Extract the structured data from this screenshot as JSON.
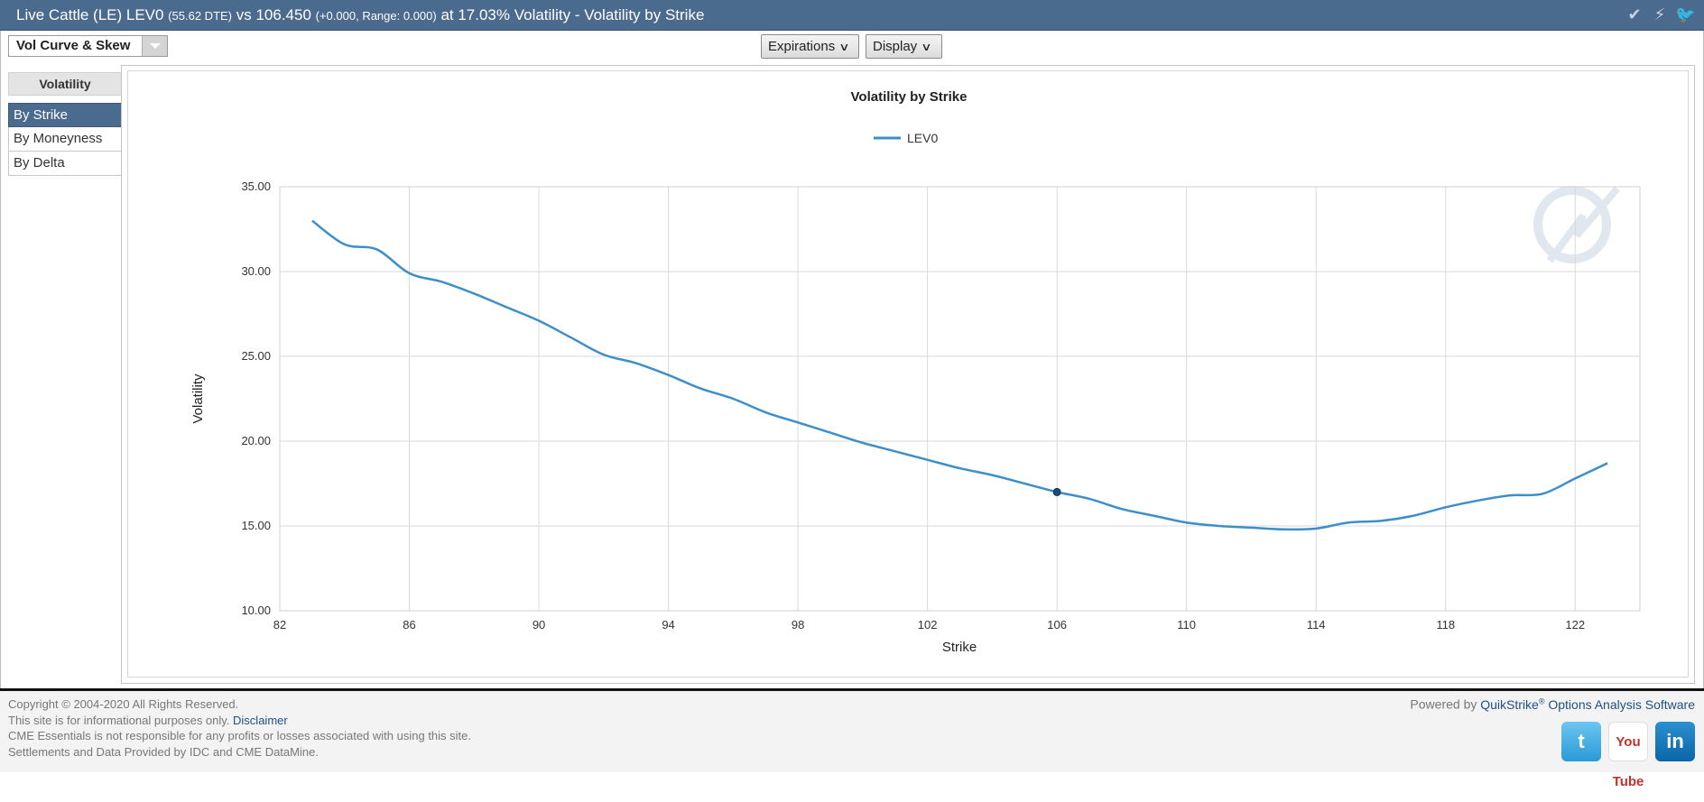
{
  "header": {
    "title_main": "Live Cattle (LE) LEV0 ",
    "title_dte": "(55.62 DTE)",
    "title_mid": " vs 106.450 ",
    "title_change": "(+0.000,  Range: 0.000)",
    "title_end": " at 17.03% Volatility - Volatility by Strike",
    "icons": [
      "check-icon",
      "bolt-icon",
      "twitter-icon"
    ]
  },
  "toolbar": {
    "view_select": "Vol Curve & Skew",
    "expirations_label": "Expirations",
    "display_label": "Display"
  },
  "sidebar": {
    "heading": "Volatility",
    "items": [
      {
        "label": "By Strike",
        "active": true
      },
      {
        "label": "By Moneyness",
        "active": false
      },
      {
        "label": "By Delta",
        "active": false
      }
    ]
  },
  "chart_data": {
    "type": "line",
    "title": "Volatility by Strike",
    "xlabel": "Strike",
    "ylabel": "Volatility",
    "xlim": [
      82,
      124
    ],
    "ylim": [
      10,
      35
    ],
    "xticks": [
      82,
      86,
      90,
      94,
      98,
      102,
      106,
      110,
      114,
      118,
      122
    ],
    "yticks": [
      "10.00",
      "15.00",
      "20.00",
      "25.00",
      "30.00",
      "35.00"
    ],
    "grid": true,
    "legend_position": "top-center",
    "series": [
      {
        "name": "LEV0",
        "color": "#3d8fc9",
        "x": [
          83,
          84,
          85,
          86,
          87,
          88,
          89,
          90,
          91,
          92,
          93,
          94,
          95,
          96,
          97,
          98,
          99,
          100,
          101,
          102,
          103,
          104,
          105,
          106,
          107,
          108,
          109,
          110,
          111,
          112,
          113,
          114,
          115,
          116,
          117,
          118,
          119,
          120,
          121,
          122,
          123
        ],
        "values": [
          33.0,
          31.6,
          31.3,
          29.9,
          29.4,
          28.7,
          27.9,
          27.1,
          26.1,
          25.1,
          24.6,
          23.9,
          23.1,
          22.5,
          21.7,
          21.1,
          20.5,
          19.9,
          19.4,
          18.9,
          18.4,
          18.0,
          17.5,
          17.0,
          16.6,
          16.0,
          15.6,
          15.2,
          15.0,
          14.9,
          14.8,
          14.85,
          15.2,
          15.3,
          15.6,
          16.1,
          16.5,
          16.8,
          16.9,
          17.8,
          18.7
        ]
      }
    ],
    "marker": {
      "x": 106,
      "y": 17.0
    }
  },
  "footer": {
    "copyright": "Copyright © 2004-2020 All Rights Reserved.",
    "info_text": "This site is for informational purposes only. ",
    "disclaimer_link": "Disclaimer",
    "responsibility": "CME Essentials is not responsible for any profits or losses associated with using this site.",
    "data_credit": "Settlements and Data Provided by IDC and CME DataMine.",
    "powered_prefix": "Powered by ",
    "powered_brand": "QuikStrike",
    "powered_reg": "®",
    "powered_suffix": " Options Analysis Software",
    "social": {
      "twitter": "t",
      "youtube": "You Tube",
      "linkedin": "in"
    }
  }
}
